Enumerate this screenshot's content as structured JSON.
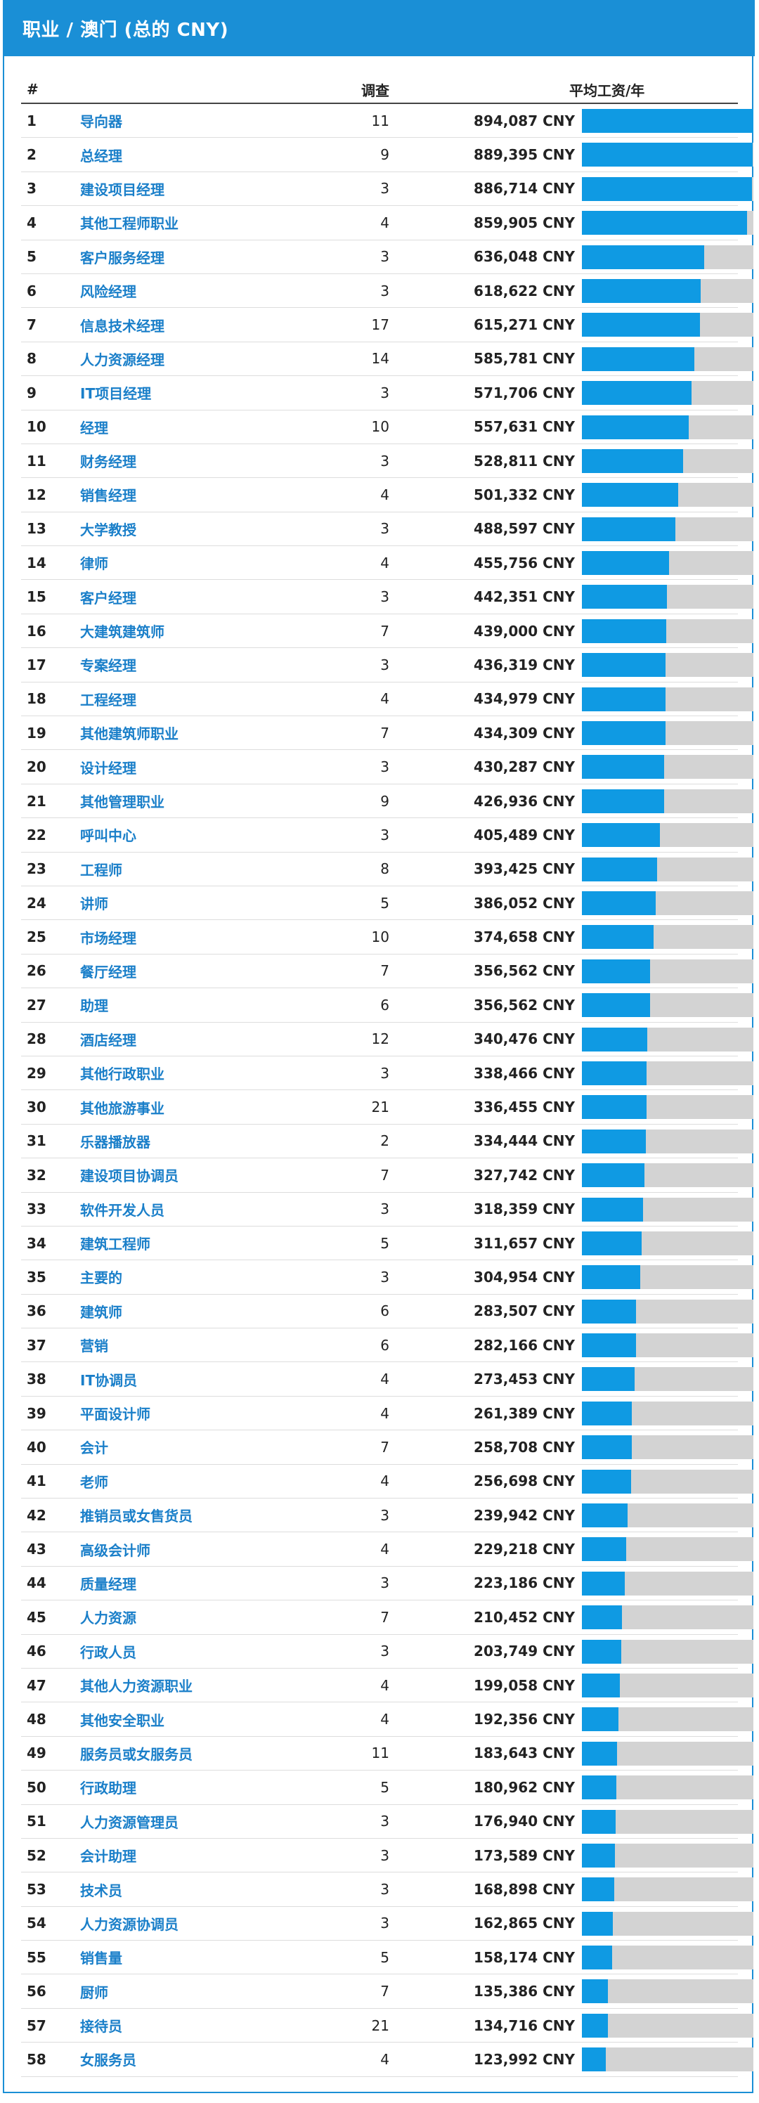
{
  "header": {
    "title": "职业 / 澳门 (总的 CNY)"
  },
  "columns": {
    "rank": "#",
    "survey": "调查",
    "avg_salary": "平均工资/年"
  },
  "colors": {
    "accent": "#1a8fd6",
    "bar_fill": "#0f9ae3",
    "bar_track": "#d3d3d3",
    "link": "#1a7fc9"
  },
  "chart_data": {
    "type": "bar",
    "max_value": 894087,
    "rows": [
      {
        "rank": "1",
        "name": "导向器",
        "count": "11",
        "salary": "894,087 CNY",
        "value": 894087
      },
      {
        "rank": "2",
        "name": "总经理",
        "count": "9",
        "salary": "889,395 CNY",
        "value": 889395
      },
      {
        "rank": "3",
        "name": "建设项目经理",
        "count": "3",
        "salary": "886,714 CNY",
        "value": 886714
      },
      {
        "rank": "4",
        "name": "其他工程师职业",
        "count": "4",
        "salary": "859,905 CNY",
        "value": 859905
      },
      {
        "rank": "5",
        "name": "客户服务经理",
        "count": "3",
        "salary": "636,048 CNY",
        "value": 636048
      },
      {
        "rank": "6",
        "name": "风险经理",
        "count": "3",
        "salary": "618,622 CNY",
        "value": 618622
      },
      {
        "rank": "7",
        "name": "信息技术经理",
        "count": "17",
        "salary": "615,271 CNY",
        "value": 615271
      },
      {
        "rank": "8",
        "name": "人力资源经理",
        "count": "14",
        "salary": "585,781 CNY",
        "value": 585781
      },
      {
        "rank": "9",
        "name": "IT项目经理",
        "count": "3",
        "salary": "571,706 CNY",
        "value": 571706
      },
      {
        "rank": "10",
        "name": "经理",
        "count": "10",
        "salary": "557,631 CNY",
        "value": 557631
      },
      {
        "rank": "11",
        "name": "财务经理",
        "count": "3",
        "salary": "528,811 CNY",
        "value": 528811
      },
      {
        "rank": "12",
        "name": "销售经理",
        "count": "4",
        "salary": "501,332 CNY",
        "value": 501332
      },
      {
        "rank": "13",
        "name": "大学教授",
        "count": "3",
        "salary": "488,597 CNY",
        "value": 488597
      },
      {
        "rank": "14",
        "name": "律师",
        "count": "4",
        "salary": "455,756 CNY",
        "value": 455756
      },
      {
        "rank": "15",
        "name": "客户经理",
        "count": "3",
        "salary": "442,351 CNY",
        "value": 442351
      },
      {
        "rank": "16",
        "name": "大建筑建筑师",
        "count": "7",
        "salary": "439,000 CNY",
        "value": 439000
      },
      {
        "rank": "17",
        "name": "专案经理",
        "count": "3",
        "salary": "436,319 CNY",
        "value": 436319
      },
      {
        "rank": "18",
        "name": "工程经理",
        "count": "4",
        "salary": "434,979 CNY",
        "value": 434979
      },
      {
        "rank": "19",
        "name": "其他建筑师职业",
        "count": "7",
        "salary": "434,309 CNY",
        "value": 434309
      },
      {
        "rank": "20",
        "name": "设计经理",
        "count": "3",
        "salary": "430,287 CNY",
        "value": 430287
      },
      {
        "rank": "21",
        "name": "其他管理职业",
        "count": "9",
        "salary": "426,936 CNY",
        "value": 426936
      },
      {
        "rank": "22",
        "name": "呼叫中心",
        "count": "3",
        "salary": "405,489 CNY",
        "value": 405489
      },
      {
        "rank": "23",
        "name": "工程师",
        "count": "8",
        "salary": "393,425 CNY",
        "value": 393425
      },
      {
        "rank": "24",
        "name": "讲师",
        "count": "5",
        "salary": "386,052 CNY",
        "value": 386052
      },
      {
        "rank": "25",
        "name": "市场经理",
        "count": "10",
        "salary": "374,658 CNY",
        "value": 374658
      },
      {
        "rank": "26",
        "name": "餐厅经理",
        "count": "7",
        "salary": "356,562 CNY",
        "value": 356562
      },
      {
        "rank": "27",
        "name": "助理",
        "count": "6",
        "salary": "356,562 CNY",
        "value": 356562
      },
      {
        "rank": "28",
        "name": "酒店经理",
        "count": "12",
        "salary": "340,476 CNY",
        "value": 340476
      },
      {
        "rank": "29",
        "name": "其他行政职业",
        "count": "3",
        "salary": "338,466 CNY",
        "value": 338466
      },
      {
        "rank": "30",
        "name": "其他旅游事业",
        "count": "21",
        "salary": "336,455 CNY",
        "value": 336455
      },
      {
        "rank": "31",
        "name": "乐器播放器",
        "count": "2",
        "salary": "334,444 CNY",
        "value": 334444
      },
      {
        "rank": "32",
        "name": "建设项目协调员",
        "count": "7",
        "salary": "327,742 CNY",
        "value": 327742
      },
      {
        "rank": "33",
        "name": "软件开发人员",
        "count": "3",
        "salary": "318,359 CNY",
        "value": 318359
      },
      {
        "rank": "34",
        "name": "建筑工程师",
        "count": "5",
        "salary": "311,657 CNY",
        "value": 311657
      },
      {
        "rank": "35",
        "name": "主要的",
        "count": "3",
        "salary": "304,954 CNY",
        "value": 304954
      },
      {
        "rank": "36",
        "name": "建筑师",
        "count": "6",
        "salary": "283,507 CNY",
        "value": 283507
      },
      {
        "rank": "37",
        "name": "营销",
        "count": "6",
        "salary": "282,166 CNY",
        "value": 282166
      },
      {
        "rank": "38",
        "name": "IT协调员",
        "count": "4",
        "salary": "273,453 CNY",
        "value": 273453
      },
      {
        "rank": "39",
        "name": "平面设计师",
        "count": "4",
        "salary": "261,389 CNY",
        "value": 261389
      },
      {
        "rank": "40",
        "name": "会计",
        "count": "7",
        "salary": "258,708 CNY",
        "value": 258708
      },
      {
        "rank": "41",
        "name": "老师",
        "count": "4",
        "salary": "256,698 CNY",
        "value": 256698
      },
      {
        "rank": "42",
        "name": "推销员或女售货员",
        "count": "3",
        "salary": "239,942 CNY",
        "value": 239942
      },
      {
        "rank": "43",
        "name": "高级会计师",
        "count": "4",
        "salary": "229,218 CNY",
        "value": 229218
      },
      {
        "rank": "44",
        "name": "质量经理",
        "count": "3",
        "salary": "223,186 CNY",
        "value": 223186
      },
      {
        "rank": "45",
        "name": "人力资源",
        "count": "7",
        "salary": "210,452 CNY",
        "value": 210452
      },
      {
        "rank": "46",
        "name": "行政人员",
        "count": "3",
        "salary": "203,749 CNY",
        "value": 203749
      },
      {
        "rank": "47",
        "name": "其他人力资源职业",
        "count": "4",
        "salary": "199,058 CNY",
        "value": 199058
      },
      {
        "rank": "48",
        "name": "其他安全职业",
        "count": "4",
        "salary": "192,356 CNY",
        "value": 192356
      },
      {
        "rank": "49",
        "name": "服务员或女服务员",
        "count": "11",
        "salary": "183,643 CNY",
        "value": 183643
      },
      {
        "rank": "50",
        "name": "行政助理",
        "count": "5",
        "salary": "180,962 CNY",
        "value": 180962
      },
      {
        "rank": "51",
        "name": "人力资源管理员",
        "count": "3",
        "salary": "176,940 CNY",
        "value": 176940
      },
      {
        "rank": "52",
        "name": "会计助理",
        "count": "3",
        "salary": "173,589 CNY",
        "value": 173589
      },
      {
        "rank": "53",
        "name": "技术员",
        "count": "3",
        "salary": "168,898 CNY",
        "value": 168898
      },
      {
        "rank": "54",
        "name": "人力资源协调员",
        "count": "3",
        "salary": "162,865 CNY",
        "value": 162865
      },
      {
        "rank": "55",
        "name": "销售量",
        "count": "5",
        "salary": "158,174 CNY",
        "value": 158174
      },
      {
        "rank": "56",
        "name": "厨师",
        "count": "7",
        "salary": "135,386 CNY",
        "value": 135386
      },
      {
        "rank": "57",
        "name": "接待员",
        "count": "21",
        "salary": "134,716 CNY",
        "value": 134716
      },
      {
        "rank": "58",
        "name": "女服务员",
        "count": "4",
        "salary": "123,992 CNY",
        "value": 123992
      }
    ]
  }
}
